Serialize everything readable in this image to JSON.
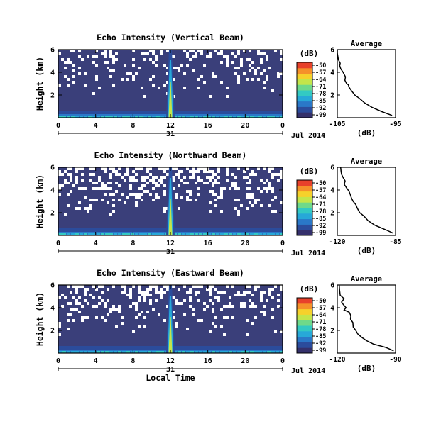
{
  "chart_data": [
    {
      "type": "heatmap",
      "title": "Echo Intensity (Vertical Beam)",
      "ylabel": "Height (km)",
      "xlabel": "",
      "x_ticks": [
        "0",
        "4",
        "8",
        "12",
        "16",
        "20",
        "0"
      ],
      "y_ticks": [
        "2",
        "4",
        "6"
      ],
      "xlim": [
        0,
        24
      ],
      "ylim": [
        0,
        6
      ],
      "day_label": "31",
      "date_label": "Jul 2014",
      "colorbar": {
        "label": "(dB)",
        "ticks": [
          "-50",
          "-57",
          "-64",
          "-71",
          "-78",
          "-85",
          "-92",
          "-99"
        ]
      },
      "average": {
        "title": "Average",
        "xlabel": "(dB)",
        "x_ticks": [
          "-105",
          "-95"
        ],
        "xlim": [
          -105,
          -95
        ],
        "y_ticks": [
          "2",
          "4",
          "6"
        ],
        "profile": [
          [
            -95.6,
            0.2
          ],
          [
            -97.2,
            0.5
          ],
          [
            -99.0,
            0.9
          ],
          [
            -100.3,
            1.3
          ],
          [
            -101.2,
            1.7
          ],
          [
            -102.0,
            2.0
          ],
          [
            -102.6,
            2.4
          ],
          [
            -103.0,
            2.7
          ],
          [
            -103.1,
            2.9
          ],
          [
            -103.4,
            3.0
          ],
          [
            -103.7,
            3.3
          ],
          [
            -103.6,
            3.6
          ],
          [
            -103.8,
            3.8
          ],
          [
            -104.0,
            4.0
          ],
          [
            -104.4,
            4.3
          ],
          [
            -104.6,
            4.6
          ],
          [
            -104.5,
            4.8
          ],
          [
            -104.8,
            5.1
          ],
          [
            -104.9,
            5.4
          ],
          [
            -105.0,
            5.7
          ],
          [
            -105.0,
            6.0
          ]
        ]
      },
      "blank_frac": 0.18
    },
    {
      "type": "heatmap",
      "title": "Echo Intensity (Northward Beam)",
      "ylabel": "Height (km)",
      "xlabel": "",
      "x_ticks": [
        "0",
        "4",
        "8",
        "12",
        "16",
        "20",
        "0"
      ],
      "y_ticks": [
        "2",
        "4",
        "6"
      ],
      "xlim": [
        0,
        24
      ],
      "ylim": [
        0,
        6
      ],
      "day_label": "31",
      "date_label": "Jul 2014",
      "colorbar": {
        "label": "(dB)",
        "ticks": [
          "-50",
          "-57",
          "-64",
          "-71",
          "-78",
          "-85",
          "-92",
          "-99"
        ]
      },
      "average": {
        "title": "Average",
        "xlabel": "(dB)",
        "x_ticks": [
          "-120",
          "-85"
        ],
        "xlim": [
          -120,
          -85
        ],
        "y_ticks": [
          "2",
          "4",
          "6"
        ],
        "profile": [
          [
            -86.5,
            0.2
          ],
          [
            -91.0,
            0.5
          ],
          [
            -97.5,
            0.9
          ],
          [
            -101.5,
            1.3
          ],
          [
            -104.0,
            1.7
          ],
          [
            -106.5,
            2.0
          ],
          [
            -108.0,
            2.4
          ],
          [
            -108.8,
            2.7
          ],
          [
            -110.5,
            3.0
          ],
          [
            -111.5,
            3.3
          ],
          [
            -112.2,
            3.6
          ],
          [
            -113.0,
            3.9
          ],
          [
            -114.5,
            4.2
          ],
          [
            -115.8,
            4.5
          ],
          [
            -115.3,
            4.8
          ],
          [
            -116.5,
            5.1
          ],
          [
            -117.5,
            5.4
          ],
          [
            -117.8,
            5.7
          ],
          [
            -118.0,
            6.0
          ]
        ]
      },
      "blank_frac": 0.34
    },
    {
      "type": "heatmap",
      "title": "Echo Intensity (Eastward Beam)",
      "ylabel": "Height (km)",
      "xlabel": "Local Time",
      "x_ticks": [
        "0",
        "4",
        "8",
        "12",
        "16",
        "20",
        "0"
      ],
      "y_ticks": [
        "2",
        "4",
        "6"
      ],
      "xlim": [
        0,
        24
      ],
      "ylim": [
        0,
        6
      ],
      "day_label": "31",
      "date_label": "Jul 2014",
      "colorbar": {
        "label": "(dB)",
        "ticks": [
          "-50",
          "-57",
          "-64",
          "-71",
          "-78",
          "-85",
          "-92",
          "-99"
        ]
      },
      "average": {
        "title": "Average",
        "xlabel": "(dB)",
        "x_ticks": [
          "-120",
          "-90"
        ],
        "xlim": [
          -120,
          -90
        ],
        "y_ticks": [
          "2",
          "4",
          "6"
        ],
        "profile": [
          [
            -91.0,
            0.2
          ],
          [
            -95.0,
            0.5
          ],
          [
            -101.5,
            0.8
          ],
          [
            -105.0,
            1.1
          ],
          [
            -107.5,
            1.4
          ],
          [
            -109.5,
            1.7
          ],
          [
            -110.5,
            2.0
          ],
          [
            -111.8,
            2.3
          ],
          [
            -112.0,
            2.7
          ],
          [
            -113.2,
            3.0
          ],
          [
            -113.0,
            3.3
          ],
          [
            -113.8,
            3.6
          ],
          [
            -116.5,
            3.8
          ],
          [
            -115.5,
            4.0
          ],
          [
            -117.0,
            4.3
          ],
          [
            -117.8,
            4.5
          ],
          [
            -116.5,
            4.8
          ],
          [
            -118.5,
            5.1
          ],
          [
            -118.8,
            5.5
          ],
          [
            -119.0,
            6.0
          ]
        ]
      },
      "blank_frac": 0.26
    }
  ]
}
